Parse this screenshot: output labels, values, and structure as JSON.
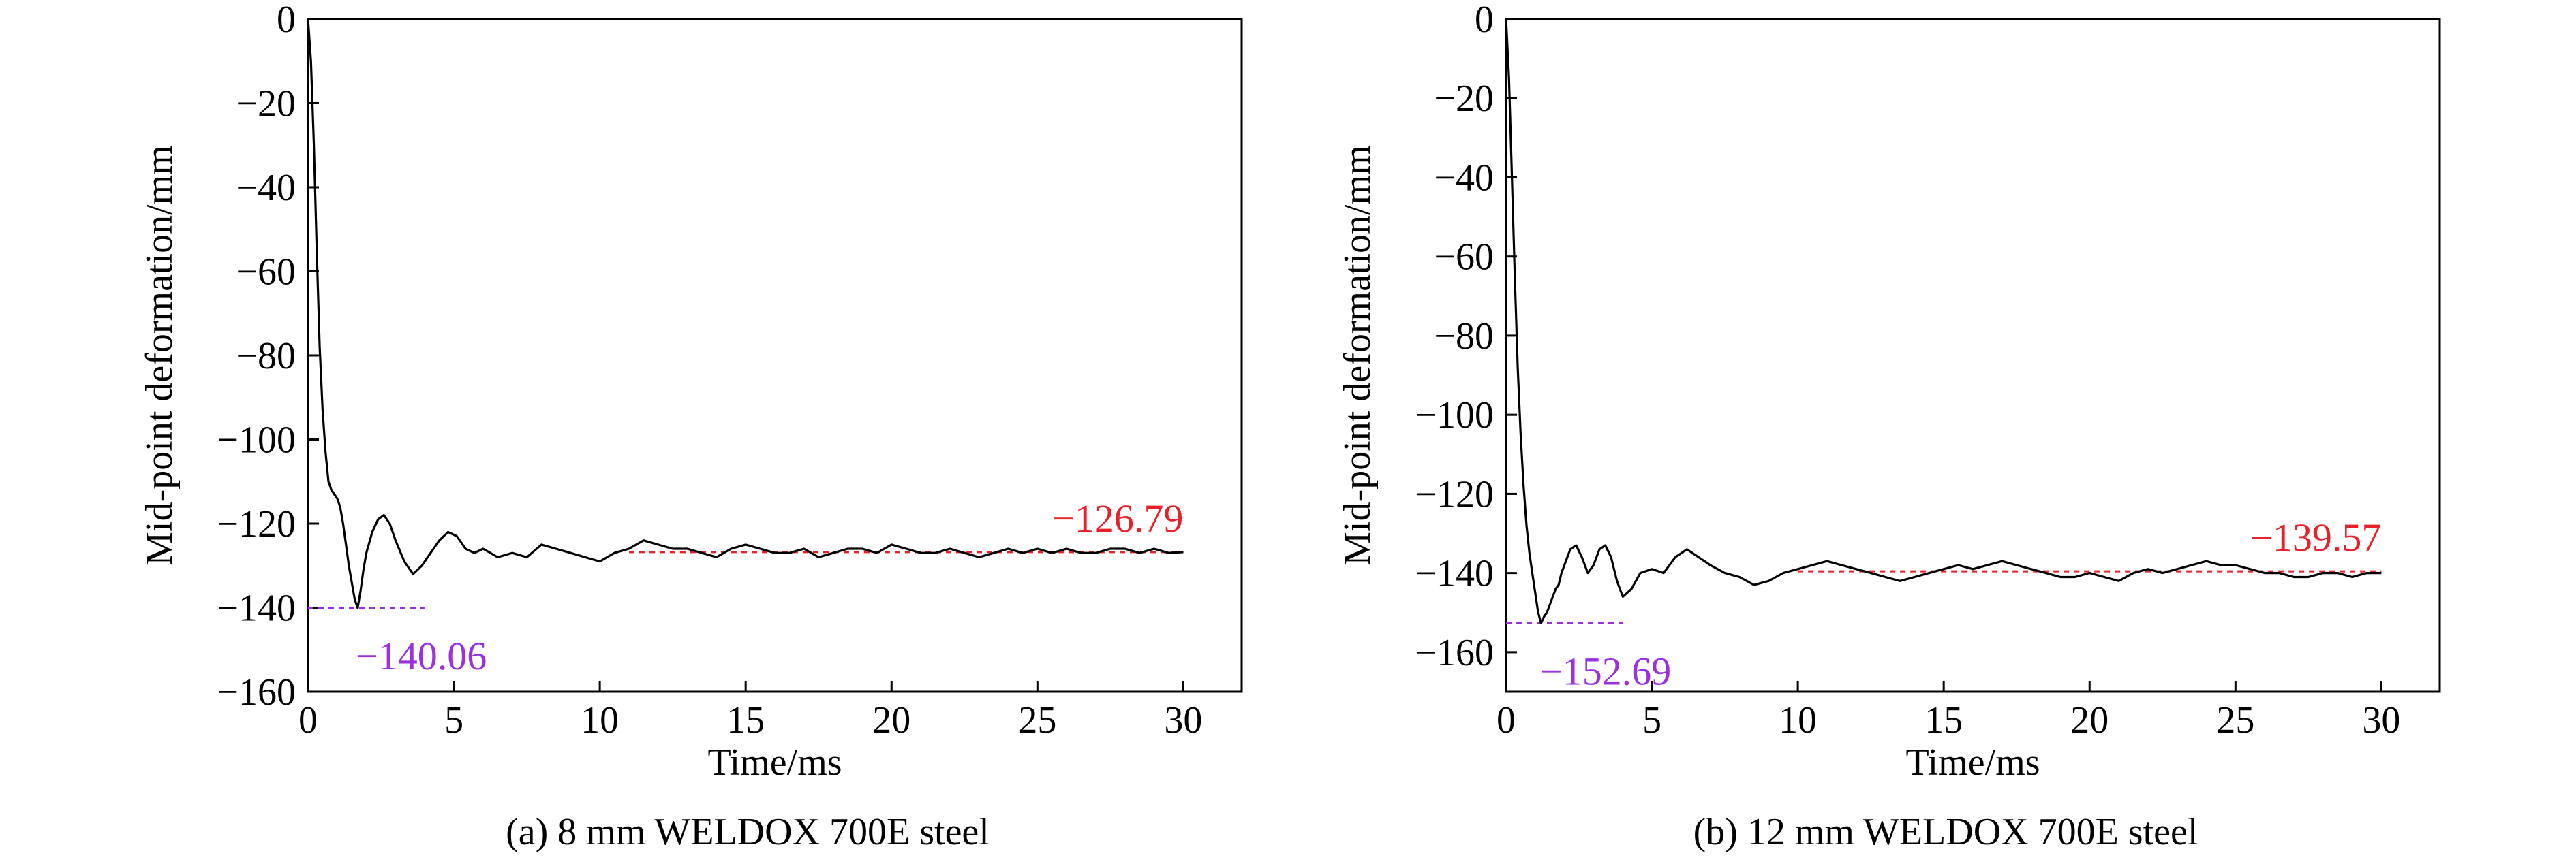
{
  "chart_data": [
    {
      "type": "line",
      "caption": "(a) 8 mm WELDOX 700E steel",
      "xlabel": "Time/ms",
      "ylabel": "Mid-point deformation/mm",
      "xlim": [
        0,
        32
      ],
      "ylim": [
        -160,
        0
      ],
      "xticks": [
        0,
        5,
        10,
        15,
        20,
        25,
        30
      ],
      "yticks": [
        0,
        -20,
        -40,
        -60,
        -80,
        -100,
        -120,
        -140,
        -160
      ],
      "xtick_labels": [
        "0",
        "5",
        "10",
        "15",
        "20",
        "25",
        "30"
      ],
      "ytick_labels": [
        "0",
        "−20",
        "−40",
        "−60",
        "−80",
        "−100",
        "−120",
        "−140",
        "−160"
      ],
      "grid": false,
      "colors": {
        "curve": "#000000",
        "peak": "#9b30e0",
        "residual": "#e8202a"
      },
      "series": [
        {
          "x": [
            0,
            0.1,
            0.2,
            0.3,
            0.4,
            0.5,
            0.6,
            0.7,
            0.8,
            0.9,
            1.0,
            1.1,
            1.2,
            1.3,
            1.4,
            1.5,
            1.6,
            1.7,
            1.8,
            1.9,
            2.0,
            2.2,
            2.4,
            2.6,
            2.8,
            3.0,
            3.3,
            3.6,
            3.9,
            4.2,
            4.5,
            4.8,
            5.1,
            5.4,
            5.7,
            6.0,
            6.5,
            7.0,
            7.5,
            8.0,
            8.5,
            9.0,
            9.5,
            10.0,
            10.5,
            11.0,
            11.5,
            12.0,
            12.5,
            13.0,
            13.5,
            14.0,
            14.5,
            15.0,
            15.5,
            16.0,
            16.5,
            17.0,
            17.5,
            18.0,
            18.5,
            19.0,
            19.5,
            20.0,
            20.5,
            21.0,
            21.5,
            22.0,
            22.5,
            23.0,
            23.5,
            24.0,
            24.5,
            25.0,
            25.5,
            26.0,
            26.5,
            27.0,
            27.5,
            28.0,
            28.5,
            29.0,
            29.5,
            30.0
          ],
          "y": [
            0,
            -10,
            -30,
            -55,
            -78,
            -93,
            -103,
            -110,
            -112,
            -113,
            -114,
            -116,
            -120,
            -125,
            -130,
            -134,
            -138,
            -140.06,
            -136,
            -131,
            -127,
            -122,
            -119,
            -118,
            -120,
            -124,
            -129,
            -132,
            -130,
            -127,
            -124,
            -122,
            -123,
            -126,
            -127,
            -126,
            -128,
            -127,
            -128,
            -125,
            -126,
            -127,
            -128,
            -129,
            -127,
            -126,
            -124,
            -125,
            -126,
            -126,
            -127,
            -128,
            -126,
            -125,
            -126,
            -127,
            -127,
            -126,
            -128,
            -127,
            -126,
            -126,
            -127,
            -125,
            -126,
            -127,
            -127,
            -126,
            -127,
            -128,
            -127,
            -126,
            -127,
            -126,
            -127,
            -126,
            -127,
            -127,
            -126,
            -126,
            -127,
            -126,
            -127,
            -126.79
          ]
        }
      ],
      "annotations": [
        {
          "label": "−140.06",
          "value": -140.06,
          "line_x": [
            0,
            4
          ],
          "color": "#9b30e0"
        },
        {
          "label": "−126.79",
          "value": -126.79,
          "line_x": [
            11,
            30
          ],
          "color": "#e8202a"
        }
      ]
    },
    {
      "type": "line",
      "caption": "(b) 12 mm WELDOX 700E steel",
      "xlabel": "Time/ms",
      "ylabel": "Mid-point deformation/mm",
      "xlim": [
        0,
        32
      ],
      "ylim": [
        -170,
        0
      ],
      "xticks": [
        0,
        5,
        10,
        15,
        20,
        25,
        30
      ],
      "yticks": [
        0,
        -20,
        -40,
        -60,
        -80,
        -100,
        -120,
        -140,
        -160
      ],
      "xtick_labels": [
        "0",
        "5",
        "10",
        "15",
        "20",
        "25",
        "30"
      ],
      "ytick_labels": [
        "0",
        "−20",
        "−40",
        "−60",
        "−80",
        "−100",
        "−120",
        "−140",
        "−160"
      ],
      "grid": false,
      "colors": {
        "curve": "#000000",
        "peak": "#9b30e0",
        "residual": "#e8202a"
      },
      "series": [
        {
          "x": [
            0,
            0.1,
            0.2,
            0.3,
            0.4,
            0.5,
            0.6,
            0.7,
            0.8,
            0.9,
            1.0,
            1.1,
            1.2,
            1.3,
            1.4,
            1.5,
            1.6,
            1.7,
            1.8,
            1.9,
            2.0,
            2.2,
            2.4,
            2.6,
            2.8,
            3.0,
            3.2,
            3.4,
            3.6,
            3.8,
            4.0,
            4.3,
            4.6,
            5.0,
            5.4,
            5.8,
            6.2,
            6.6,
            7.0,
            7.5,
            8.0,
            8.5,
            9.0,
            9.5,
            10.0,
            10.5,
            11.0,
            11.5,
            12.0,
            12.5,
            13.0,
            13.5,
            14.0,
            14.5,
            15.0,
            15.5,
            16.0,
            16.5,
            17.0,
            17.5,
            18.0,
            18.5,
            19.0,
            19.5,
            20.0,
            20.5,
            21.0,
            21.5,
            22.0,
            22.5,
            23.0,
            23.5,
            24.0,
            24.5,
            25.0,
            25.5,
            26.0,
            26.5,
            27.0,
            27.5,
            28.0,
            28.5,
            29.0,
            29.5,
            30.0
          ],
          "y": [
            0,
            -15,
            -40,
            -65,
            -88,
            -105,
            -118,
            -128,
            -135,
            -140,
            -145,
            -150,
            -152.69,
            -151,
            -150,
            -148,
            -146,
            -144,
            -143,
            -140,
            -138,
            -134,
            -133,
            -136,
            -140,
            -138,
            -134,
            -133,
            -136,
            -142,
            -146,
            -144,
            -140,
            -139,
            -140,
            -136,
            -134,
            -136,
            -138,
            -140,
            -141,
            -143,
            -142,
            -140,
            -139,
            -138,
            -137,
            -138,
            -139,
            -140,
            -141,
            -142,
            -141,
            -140,
            -139,
            -138,
            -139,
            -138,
            -137,
            -138,
            -139,
            -140,
            -141,
            -141,
            -140,
            -141,
            -142,
            -140,
            -139,
            -140,
            -139,
            -138,
            -137,
            -138,
            -138,
            -139,
            -140,
            -140,
            -141,
            -141,
            -140,
            -140,
            -141,
            -140,
            -140
          ]
        }
      ],
      "annotations": [
        {
          "label": "−152.69",
          "value": -152.69,
          "line_x": [
            0,
            4
          ],
          "color": "#9b30e0"
        },
        {
          "label": "−139.57",
          "value": -139.57,
          "line_x": [
            10,
            30
          ],
          "color": "#e8202a"
        }
      ]
    }
  ]
}
